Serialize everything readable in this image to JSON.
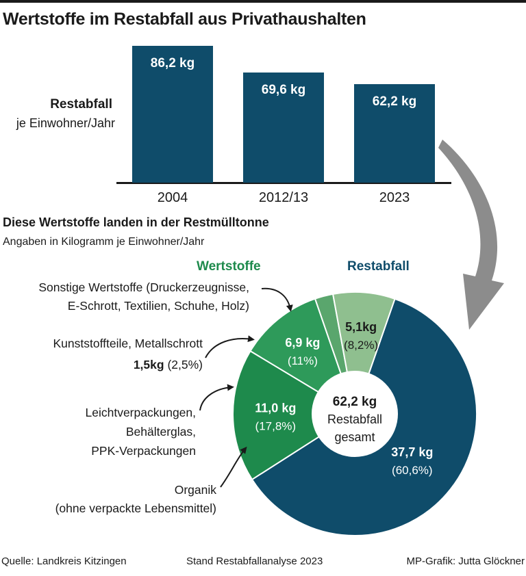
{
  "title": "Wertstoffe im Restabfall aus Privathaushalten",
  "colors": {
    "restabfall": "#0f4c6a",
    "wertstoffe": "#1e8a4c"
  },
  "chart_data": [
    {
      "type": "bar",
      "categories": [
        "2004",
        "2012/13",
        "2023"
      ],
      "values": [
        86.2,
        69.6,
        62.2
      ],
      "value_labels": [
        "86,2 kg",
        "69,6 kg",
        "62,2 kg"
      ],
      "ylabel_bold": "Restabfall",
      "ylabel": "je Einwohner/Jahr",
      "ylim": [
        0,
        86.2
      ]
    },
    {
      "type": "pie",
      "title": "Diese Wertstoffe landen in der Restmülltonne",
      "subtitle": "Angaben in Kilogramm je Einwohner/Jahr",
      "group_labels": {
        "wertstoffe": "Wertstoffe",
        "restabfall": "Restabfall"
      },
      "center": {
        "value": "62,2 kg",
        "line1": "Restabfall",
        "line2": "gesamt"
      },
      "slices": [
        {
          "label": "Restabfall",
          "value": 37.7,
          "percent": 60.6,
          "value_label": "37,7 kg",
          "percent_label": "(60,6%)",
          "color": "#0f4c6a"
        },
        {
          "label": "Organik (ohne verpackte Lebensmittel)",
          "value": 11.0,
          "percent": 17.8,
          "value_label": "11,0 kg",
          "percent_label": "(17,8%)",
          "color": "#1e8a4c"
        },
        {
          "label": "Leichtverpackungen, Behälterglas, PPK-Verpackungen",
          "value": 6.9,
          "percent": 11,
          "value_label": "6,9 kg",
          "percent_label": "(11%)",
          "color": "#2e9a5a"
        },
        {
          "label": "Kunststoffteile, Metallschrott",
          "value": 1.5,
          "percent": 2.5,
          "value_label": "1,5kg",
          "percent_label": "(2,5%)",
          "color": "#5aa66d"
        },
        {
          "label": "Sonstige Wertstoffe (Druckerzeugnisse, E-Schrott, Textilien, Schuhe, Holz)",
          "value": 5.1,
          "percent": 8.2,
          "value_label": "5,1kg",
          "percent_label": "(8,2%)",
          "color": "#8fbf8f"
        }
      ]
    }
  ],
  "category_texts": {
    "sonstige_line1": "Sonstige Wertstoffe (Druckerzeugnisse,",
    "sonstige_line2": "E-Schrott, Textilien, Schuhe, Holz)",
    "kunst_line1": "Kunststoffteile, Metallschrott",
    "kunst_value": "1,5kg",
    "kunst_percent": "(2,5%)",
    "leicht_line1": "Leichtverpackungen,",
    "leicht_line2": "Behälterglas,",
    "leicht_line3": "PPK-Verpackungen",
    "organik_line1": "Organik",
    "organik_line2": "(ohne verpackte Lebensmittel)"
  },
  "footer": {
    "source": "Quelle: Landkreis Kitzingen",
    "stand": "Stand Restabfallanalyse 2023",
    "credit": "MP-Grafik: Jutta Glöckner"
  }
}
